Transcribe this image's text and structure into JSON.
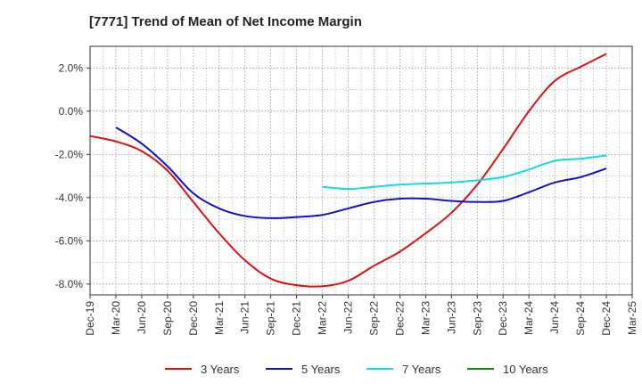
{
  "chart_data": {
    "type": "line",
    "title": "[7771]  Trend of Mean of Net Income Margin",
    "xlabel": "",
    "ylabel": "",
    "x_categories": [
      "Dec-19",
      "Mar-20",
      "Jun-20",
      "Sep-20",
      "Dec-20",
      "Mar-21",
      "Jun-21",
      "Sep-21",
      "Dec-21",
      "Mar-22",
      "Jun-22",
      "Sep-22",
      "Dec-22",
      "Mar-23",
      "Jun-23",
      "Sep-23",
      "Dec-23",
      "Mar-24",
      "Jun-24",
      "Sep-24",
      "Dec-24",
      "Mar-25"
    ],
    "y_ticks": [
      "2.0%",
      "0.0%",
      "-2.0%",
      "-4.0%",
      "-6.0%",
      "-8.0%"
    ],
    "ylim": [
      -8.5,
      3.0
    ],
    "grid": true,
    "legend_position": "bottom",
    "series": [
      {
        "name": "3 Years",
        "color": "#dd1111",
        "values": [
          -1.15,
          -1.4,
          -1.85,
          -2.75,
          -4.2,
          -5.65,
          -6.9,
          -7.75,
          -8.05,
          -8.1,
          -7.85,
          -7.15,
          -6.5,
          -5.65,
          -4.7,
          -3.4,
          -1.75,
          0.0,
          1.4,
          2.05,
          2.65,
          null
        ]
      },
      {
        "name": "5 Years",
        "color": "#1111cc",
        "values": [
          null,
          -0.75,
          -1.5,
          -2.55,
          -3.8,
          -4.5,
          -4.85,
          -4.95,
          -4.9,
          -4.8,
          -4.5,
          -4.2,
          -4.05,
          -4.05,
          -4.15,
          -4.2,
          -4.15,
          -3.75,
          -3.3,
          -3.05,
          -2.65,
          null
        ]
      },
      {
        "name": "7 Years",
        "color": "#11dddd",
        "values": [
          null,
          null,
          null,
          null,
          null,
          null,
          null,
          null,
          null,
          -3.5,
          -3.6,
          -3.5,
          -3.4,
          -3.35,
          -3.3,
          -3.2,
          -3.05,
          -2.7,
          -2.3,
          -2.2,
          -2.05,
          null
        ]
      },
      {
        "name": "10 Years",
        "color": "#118811",
        "values": [
          null,
          null,
          null,
          null,
          null,
          null,
          null,
          null,
          null,
          null,
          null,
          null,
          null,
          null,
          null,
          null,
          null,
          null,
          null,
          null,
          null,
          null
        ]
      }
    ]
  }
}
